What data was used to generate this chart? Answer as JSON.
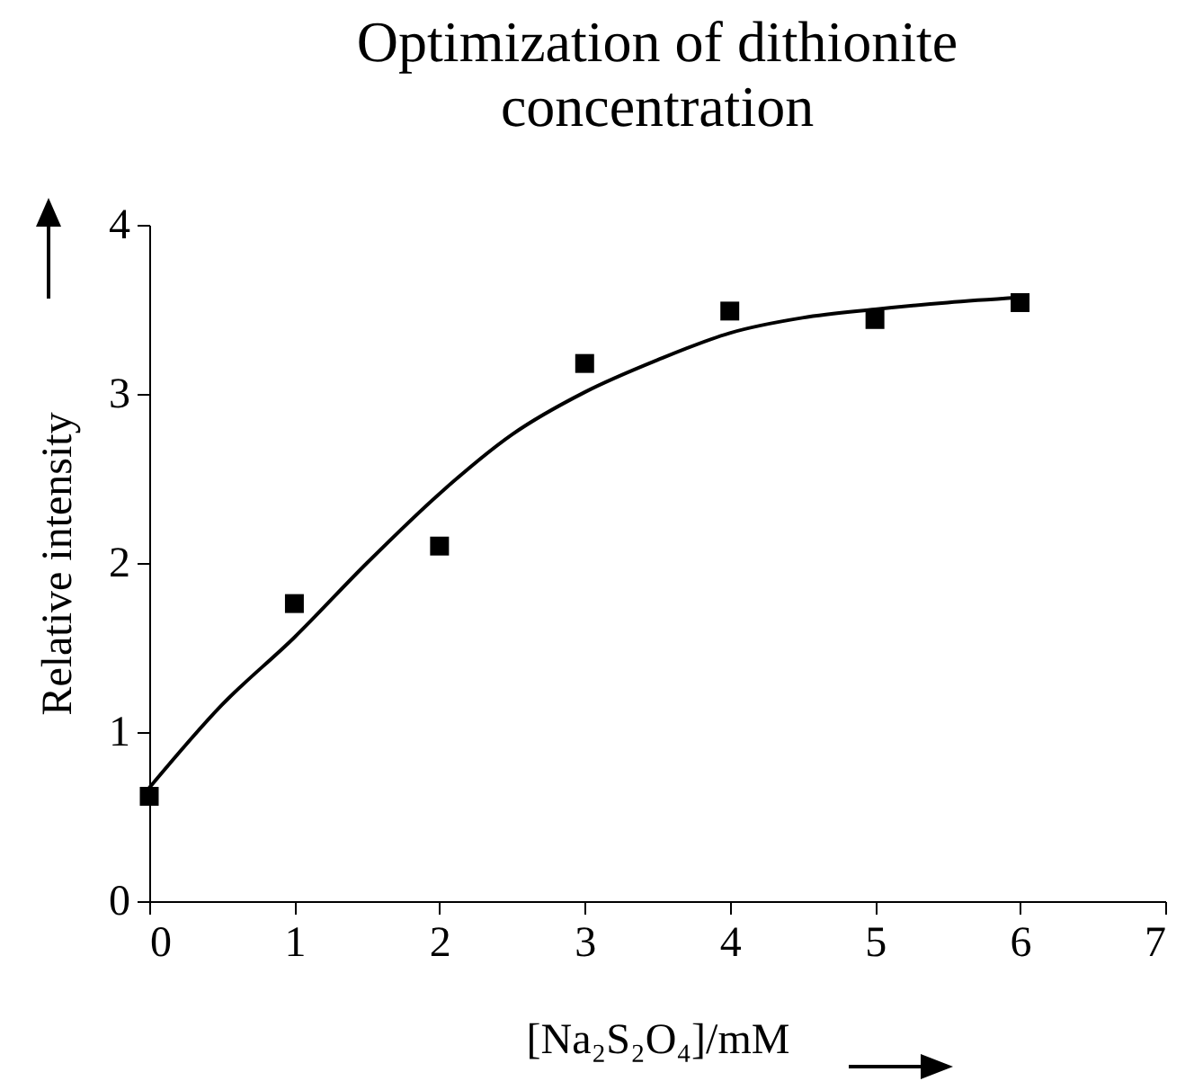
{
  "chart_data": {
    "type": "scatter",
    "title": "Optimization of dithionite concentration",
    "xlabel": "[Na₂S₂O₄]/mM",
    "ylabel": "Relative intensity",
    "x": [
      0,
      1,
      2,
      3,
      4,
      5,
      6
    ],
    "series": [
      {
        "type": "scatter",
        "color": "#000000",
        "marker": "square",
        "values": [
          0.62,
          1.76,
          2.1,
          3.18,
          3.49,
          3.44,
          3.54
        ]
      },
      {
        "type": "line",
        "color": "#000000",
        "line_style": "solid",
        "x": [
          0,
          0.5,
          1,
          1.5,
          2,
          2.5,
          3,
          3.5,
          4,
          4.5,
          5,
          5.5,
          6
        ],
        "values": [
          0.67,
          1.16,
          1.56,
          2.0,
          2.41,
          2.76,
          3.01,
          3.2,
          3.36,
          3.45,
          3.5,
          3.54,
          3.57
        ]
      }
    ],
    "xlim": [
      0,
      7
    ],
    "xticks": [
      0,
      1,
      2,
      3,
      4,
      5,
      6,
      7
    ],
    "ylim": [
      0,
      4
    ],
    "yticks": [
      0,
      1,
      2,
      3,
      4
    ],
    "grid": false
  }
}
